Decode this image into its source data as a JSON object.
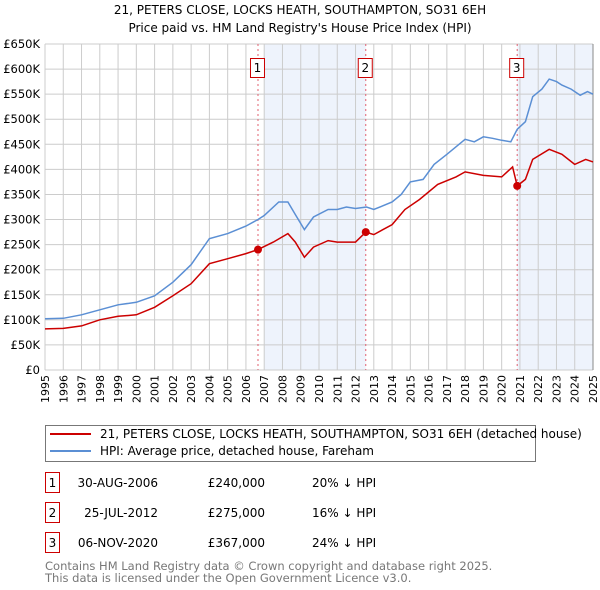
{
  "chart_data": {
    "type": "line",
    "title": "21, PETERS CLOSE, LOCKS HEATH, SOUTHAMPTON, SO31 6EH",
    "subtitle": "Price paid vs. HM Land Registry's House Price Index (HPI)",
    "xlim": [
      1995,
      2025
    ],
    "ylim": [
      0,
      650000
    ],
    "x_ticks": [
      "1995",
      "1996",
      "1997",
      "1998",
      "1999",
      "2000",
      "2001",
      "2002",
      "2003",
      "2004",
      "2005",
      "2006",
      "2007",
      "2008",
      "2009",
      "2010",
      "2011",
      "2012",
      "2013",
      "2014",
      "2015",
      "2016",
      "2017",
      "2018",
      "2019",
      "2020",
      "2021",
      "2022",
      "2023",
      "2024",
      "2025"
    ],
    "y_ticks": [
      {
        "v": 0,
        "label": "£0"
      },
      {
        "v": 50000,
        "label": "£50K"
      },
      {
        "v": 100000,
        "label": "£100K"
      },
      {
        "v": 150000,
        "label": "£150K"
      },
      {
        "v": 200000,
        "label": "£200K"
      },
      {
        "v": 250000,
        "label": "£250K"
      },
      {
        "v": 300000,
        "label": "£300K"
      },
      {
        "v": 350000,
        "label": "£350K"
      },
      {
        "v": 400000,
        "label": "£400K"
      },
      {
        "v": 450000,
        "label": "£450K"
      },
      {
        "v": 500000,
        "label": "£500K"
      },
      {
        "v": 550000,
        "label": "£550K"
      },
      {
        "v": 600000,
        "label": "£600K"
      },
      {
        "v": 650000,
        "label": "£650K"
      }
    ],
    "grid": true,
    "series": [
      {
        "name": "21, PETERS CLOSE, LOCKS HEATH, SOUTHAMPTON, SO31 6EH (detached house)",
        "color": "#cc0000",
        "x": [
          1995,
          1996,
          1997,
          1998,
          1999,
          2000,
          2001,
          2002,
          2003,
          2004,
          2005,
          2006,
          2006.66,
          2007.5,
          2008.3,
          2008.7,
          2009.2,
          2009.7,
          2010.5,
          2011,
          2012,
          2012.56,
          2013,
          2014,
          2014.7,
          2015.5,
          2016.5,
          2017.5,
          2018,
          2019,
          2020,
          2020.6,
          2020.85,
          2021.3,
          2021.7,
          2022.6,
          2023.3,
          2024,
          2024.6,
          2025
        ],
        "y": [
          82000,
          83000,
          88000,
          100000,
          107000,
          110000,
          125000,
          148000,
          172000,
          212000,
          222000,
          232000,
          240000,
          255000,
          272000,
          255000,
          225000,
          245000,
          258000,
          255000,
          255000,
          275000,
          270000,
          290000,
          320000,
          340000,
          370000,
          385000,
          395000,
          388000,
          385000,
          405000,
          367000,
          380000,
          420000,
          440000,
          430000,
          410000,
          420000,
          415000
        ]
      },
      {
        "name": "HPI: Average price, detached house, Fareham",
        "color": "#5b8fd4",
        "x": [
          1995,
          1996,
          1997,
          1998,
          1999,
          2000,
          2001,
          2002,
          2003,
          2004,
          2005,
          2006,
          2006.66,
          2007,
          2007.8,
          2008.3,
          2008.7,
          2009.2,
          2009.7,
          2010.5,
          2011,
          2011.5,
          2012,
          2012.6,
          2013,
          2014,
          2014.5,
          2015,
          2015.7,
          2016.3,
          2017,
          2017.5,
          2018,
          2018.5,
          2019,
          2019.5,
          2020,
          2020.5,
          2020.85,
          2021.3,
          2021.7,
          2022.2,
          2022.6,
          2023,
          2023.3,
          2023.8,
          2024.3,
          2024.7,
          2025
        ],
        "y": [
          102000,
          103000,
          110000,
          120000,
          130000,
          135000,
          148000,
          175000,
          210000,
          262000,
          272000,
          287000,
          300000,
          308000,
          335000,
          335000,
          310000,
          280000,
          305000,
          320000,
          320000,
          325000,
          322000,
          325000,
          320000,
          335000,
          350000,
          375000,
          380000,
          410000,
          430000,
          445000,
          460000,
          455000,
          465000,
          462000,
          458000,
          455000,
          480000,
          495000,
          545000,
          560000,
          580000,
          575000,
          568000,
          560000,
          548000,
          555000,
          550000
        ]
      }
    ],
    "transactions": [
      {
        "id": "1",
        "x": 2006.66,
        "date": "30-AUG-2006",
        "price_value": 240000,
        "price": "£240,000",
        "hpi": "20% ↓ HPI"
      },
      {
        "id": "2",
        "x": 2012.56,
        "date": "25-JUL-2012",
        "price_value": 275000,
        "price": "£275,000",
        "hpi": "16% ↓ HPI"
      },
      {
        "id": "3",
        "x": 2020.85,
        "date": "06-NOV-2020",
        "price_value": 367000,
        "price": "£367,000",
        "hpi": "24% ↓ HPI"
      }
    ],
    "shaded_ranges": [
      [
        2007,
        2012.56
      ],
      [
        2020.85,
        2025
      ]
    ]
  },
  "footer": {
    "line1": "Contains HM Land Registry data © Crown copyright and database right 2025.",
    "line2": "This data is licensed under the Open Government Licence v3.0."
  }
}
